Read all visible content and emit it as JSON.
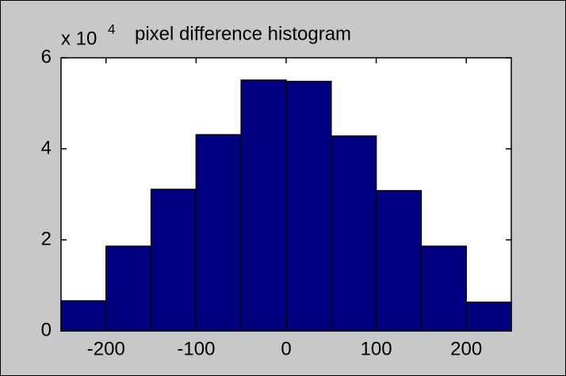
{
  "chart_data": {
    "type": "histogram",
    "title": "pixel difference histogram",
    "y_multiplier": {
      "base": "x 10",
      "exponent": "4"
    },
    "bins": [
      -250,
      -200,
      -150,
      -100,
      -50,
      0,
      50,
      100,
      150,
      200,
      250
    ],
    "values": [
      0.66,
      1.86,
      3.11,
      4.31,
      5.51,
      5.48,
      4.28,
      3.08,
      1.86,
      0.63
    ],
    "color": "#000080",
    "xlim": [
      -250,
      250
    ],
    "xticks": [
      -200,
      -100,
      0,
      100,
      200
    ],
    "ylim": [
      0,
      6
    ],
    "yticks": [
      0,
      2,
      4,
      6
    ],
    "grid": false
  }
}
